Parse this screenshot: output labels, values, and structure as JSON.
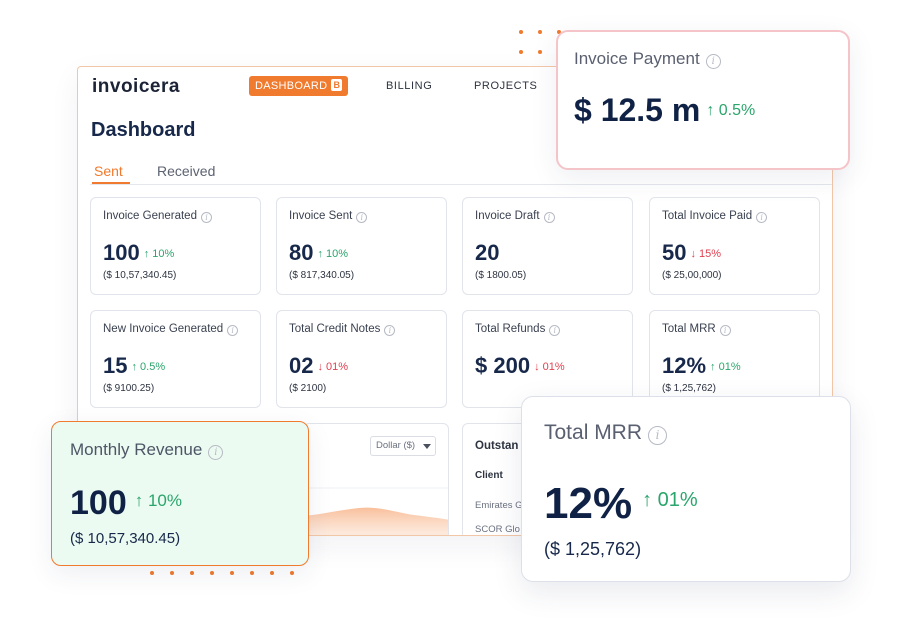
{
  "app": {
    "logo": "invoicera",
    "nav": {
      "dashboard": "DASHBOARD",
      "dashboard_badge": "B",
      "billing": "BILLING",
      "projects": "PROJECTS"
    }
  },
  "page": {
    "title": "Dashboard",
    "tabs": [
      {
        "label": "Sent",
        "active": true
      },
      {
        "label": "Received",
        "active": false
      }
    ]
  },
  "cards": [
    {
      "title": "Invoice Generated",
      "value": "100",
      "delta": "↑ 10%",
      "trend": "up",
      "sub": "($ 10,57,340.45)"
    },
    {
      "title": "Invoice Sent",
      "value": "80",
      "delta": "↑ 10%",
      "trend": "up",
      "sub": "($ 817,340.05)"
    },
    {
      "title": "Invoice Draft",
      "value": "20",
      "delta": "",
      "trend": "none",
      "sub": "($ 1800.05)"
    },
    {
      "title": "Total Invoice Paid",
      "value": "50",
      "delta": "↓ 15%",
      "trend": "down",
      "sub": "($ 25,00,000)"
    },
    {
      "title": "New Invoice Generated",
      "value": "15",
      "delta": "↑ 0.5%",
      "trend": "up",
      "sub": "($ 9100.25)"
    },
    {
      "title": "Total Credit Notes",
      "value": "02",
      "delta": "↓ 01%",
      "trend": "down",
      "sub": "($ 2100)"
    },
    {
      "title": "Total Refunds",
      "value": "$ 200",
      "delta": "↓ 01%",
      "trend": "down",
      "sub": ""
    },
    {
      "title": "Total MRR",
      "value": "12%",
      "delta": "↑ 01%",
      "trend": "up",
      "sub": "($ 1,25,762)"
    }
  ],
  "chart_panel": {
    "currency_select": "Dollar ($)"
  },
  "table_panel": {
    "title": "Outstan",
    "header": "Client",
    "rows": [
      "Emirates G",
      "SCOR Glo"
    ]
  },
  "popups": {
    "payment": {
      "title": "Invoice Payment",
      "value": "$ 12.5 m",
      "delta": "↑ 0.5%"
    },
    "revenue": {
      "title": "Monthly Revenue",
      "value": "100",
      "delta": "↑ 10%",
      "sub": "($ 10,57,340.45)"
    },
    "mrr": {
      "title": "Total MRR",
      "value": "12%",
      "delta": "↑ 01%",
      "sub": "($ 1,25,762)"
    }
  },
  "colors": {
    "accent": "#f07a2d",
    "positive": "#2aa56b",
    "negative": "#e04050",
    "text_dark": "#17284a"
  },
  "icons": {
    "info": "info-icon",
    "select_caret": "chevron-down-icon"
  }
}
